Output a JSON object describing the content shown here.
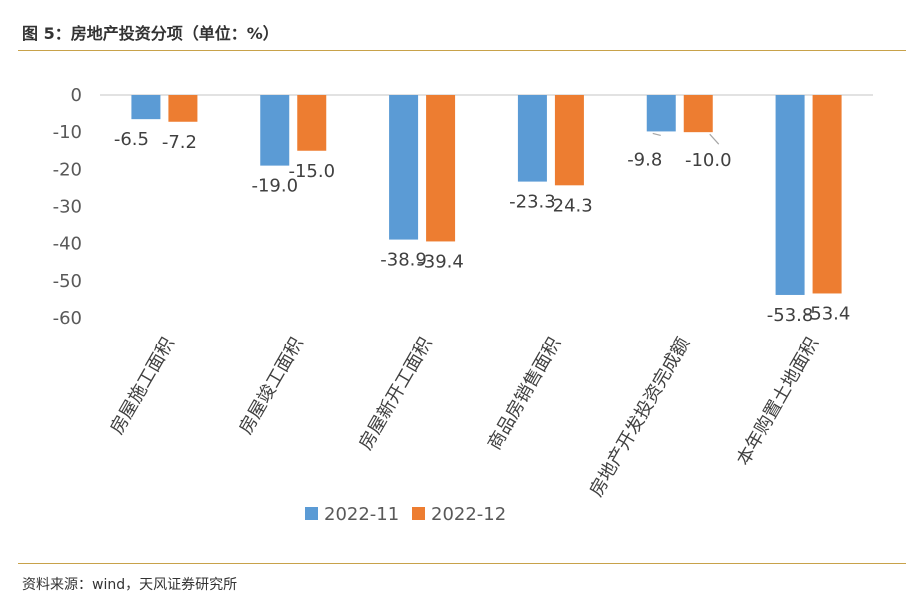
{
  "header": {
    "title": "图 5：房地产投资分项（单位：%）"
  },
  "footer": {
    "source": "资料来源：wind，天风证券研究所"
  },
  "colors": {
    "series_1": "#5b9bd5",
    "series_2": "#ed7d31",
    "rule": "#c8a24a",
    "axis": "#d9d9d9"
  },
  "chart_data": {
    "type": "bar",
    "title": "",
    "xlabel": "",
    "ylabel": "",
    "ylim": [
      -60,
      0
    ],
    "yticks": [
      0,
      -10,
      -20,
      -30,
      -40,
      -50,
      -60
    ],
    "grid": false,
    "legend": "bottom",
    "categories": [
      "房屋施工面积",
      "房屋竣工面积",
      "房屋新开工面积",
      "商品房销售面积",
      "房地产开发投资完成额",
      "本年购置土地面积"
    ],
    "series": [
      {
        "name": "2022-11",
        "values": [
          -6.5,
          -19.0,
          -38.9,
          -23.3,
          -9.8,
          -53.8
        ]
      },
      {
        "name": "2022-12",
        "values": [
          -7.2,
          -15.0,
          -39.4,
          -24.3,
          -10.0,
          -53.4
        ]
      }
    ]
  }
}
